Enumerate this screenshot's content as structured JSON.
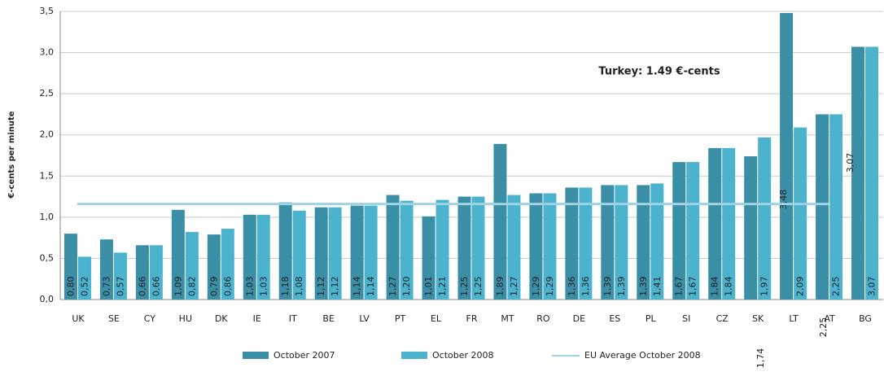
{
  "chart_data": {
    "type": "bar",
    "y_axis_label": "€-cents per minute",
    "annotation": "Turkey: 1.49 €-cents",
    "categories": [
      "UK",
      "SE",
      "CY",
      "HU",
      "DK",
      "IE",
      "IT",
      "BE",
      "LV",
      "PT",
      "EL",
      "FR",
      "MT",
      "RO",
      "DE",
      "ES",
      "PL",
      "SI",
      "CZ",
      "SK",
      "LT",
      "AT",
      "BG"
    ],
    "series": [
      {
        "name": "October 2007",
        "color": "#3a8ea6",
        "values": [
          0.8,
          0.73,
          0.66,
          1.09,
          0.79,
          1.03,
          1.18,
          1.12,
          1.14,
          1.27,
          1.01,
          1.25,
          1.89,
          1.29,
          1.36,
          1.39,
          1.39,
          1.67,
          1.84,
          1.74,
          3.48,
          2.25,
          3.07
        ],
        "value_labels": [
          "0,80",
          "0,73",
          "0,66",
          "1,09",
          "0,79",
          "1,03",
          "1,18",
          "1,12",
          "1,14",
          "1,27",
          "1,01",
          "1,25",
          "1,89",
          "1,29",
          "1,36",
          "1,39",
          "1,39",
          "1,67",
          "1,84",
          "1,74",
          "3,48",
          "2,25",
          "3,07"
        ]
      },
      {
        "name": "October 2008",
        "color": "#4cb3cf",
        "values": [
          0.52,
          0.57,
          0.66,
          0.82,
          0.86,
          1.03,
          1.08,
          1.12,
          1.14,
          1.2,
          1.21,
          1.25,
          1.27,
          1.29,
          1.36,
          1.39,
          1.41,
          1.67,
          1.84,
          1.97,
          2.09,
          2.25,
          3.07
        ],
        "value_labels": [
          "0,52",
          "0,57",
          "0,66",
          "0,82",
          "0,86",
          "1,03",
          "1,08",
          "1,12",
          "1,14",
          "1,20",
          "1,21",
          "1,25",
          "1,27",
          "1,29",
          "1,36",
          "1,39",
          "1,41",
          "1,67",
          "1,84",
          "1,97",
          "2,09",
          "2,25",
          "3,07"
        ]
      }
    ],
    "reference_line": {
      "name": "EU Average October 2008",
      "value": 1.16,
      "color": "#9fd3e3"
    },
    "ylim": [
      0,
      3.5
    ],
    "yticks": [
      {
        "value": 0,
        "label": "0,0"
      },
      {
        "value": 0.5,
        "label": "0,5"
      },
      {
        "value": 1,
        "label": "1,0"
      },
      {
        "value": 1.5,
        "label": "1,5"
      },
      {
        "value": 2,
        "label": "2,0"
      },
      {
        "value": 2.5,
        "label": "2,5"
      },
      {
        "value": 3,
        "label": "3,0"
      },
      {
        "value": 3.5,
        "label": "3,5"
      }
    ],
    "grid": true
  }
}
